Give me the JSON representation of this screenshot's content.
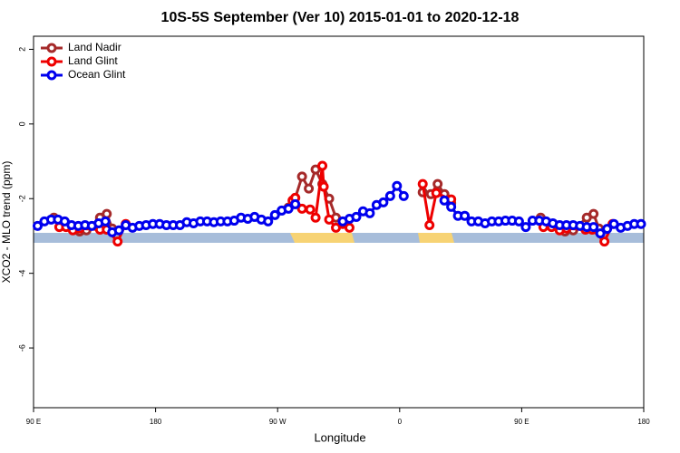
{
  "chart_data": {
    "type": "line",
    "title": "10S-5S September (Ver 10)   2015-01-01 to 2020-12-18",
    "xlabel": "Longitude",
    "ylabel": "XCO2 - MLO trend (ppm)",
    "xlim": [
      90,
      540
    ],
    "xticks": [
      {
        "value": 90,
        "label": "90 E"
      },
      180,
      {
        "value": 270,
        "label": "90 W"
      },
      {
        "value": 360,
        "label": "0"
      },
      {
        "value": 450,
        "label": "90 E"
      },
      {
        "value": 540,
        "label": "180"
      }
    ],
    "ylim": [
      -7.6,
      2.35
    ],
    "yticks": [
      2,
      0,
      -2,
      -4,
      -6
    ],
    "legend": "top-left",
    "series": [
      {
        "name": "Land Nadir",
        "color": "#a52a2a",
        "x": [
          105,
          110,
          124,
          129,
          139,
          144,
          148,
          null,
          278,
          283,
          288,
          293,
          298,
          303,
          308,
          313,
          318,
          null,
          377,
          383,
          388,
          393,
          398,
          null,
          464,
          470,
          482,
          488,
          498,
          503,
          507
        ],
        "values": [
          -2.51,
          -2.66,
          -2.88,
          -2.85,
          -2.51,
          -2.41,
          -2.8,
          null,
          -2.24,
          -1.98,
          -1.41,
          -1.73,
          -1.22,
          -1.61,
          -2.0,
          -2.51,
          -2.66,
          null,
          -1.83,
          -1.88,
          -1.61,
          -1.88,
          -2.12,
          null,
          -2.51,
          -2.68,
          -2.88,
          -2.85,
          -2.51,
          -2.41,
          -2.8
        ]
      },
      {
        "name": "Land Glint",
        "color": "#ee0000",
        "x": [
          109,
          114,
          119,
          124,
          139,
          144,
          152,
          158,
          null,
          281,
          283,
          288,
          294,
          298,
          303,
          304,
          308,
          313,
          318,
          323,
          null,
          377,
          382,
          387,
          398,
          null,
          466,
          472,
          478,
          483,
          497,
          502,
          511,
          517
        ],
        "values": [
          -2.76,
          -2.76,
          -2.85,
          -2.8,
          -2.83,
          -2.83,
          -3.15,
          -2.68,
          null,
          -2.05,
          -1.98,
          -2.27,
          -2.29,
          -2.51,
          -1.12,
          -1.68,
          -2.56,
          -2.78,
          -2.68,
          -2.78,
          null,
          -1.61,
          -2.71,
          -1.85,
          -2.02,
          null,
          -2.76,
          -2.76,
          -2.85,
          -2.8,
          -2.83,
          -2.83,
          -3.15,
          -2.68
        ]
      },
      {
        "name": "Ocean Glint",
        "color": "#0000ee",
        "x": [
          93,
          98,
          103,
          108,
          113,
          118,
          123,
          128,
          133,
          138,
          143,
          148,
          153,
          158,
          163,
          168,
          173,
          178,
          183,
          188,
          193,
          198,
          203,
          208,
          213,
          218,
          223,
          228,
          233,
          238,
          243,
          248,
          253,
          258,
          263,
          268,
          273,
          278,
          283,
          null,
          318,
          323,
          328,
          333,
          338,
          343,
          348,
          353,
          358,
          363,
          null,
          393,
          398,
          403,
          408,
          413,
          418,
          423,
          428,
          433,
          438,
          443,
          448,
          453,
          458,
          463,
          468,
          473,
          478,
          483,
          488,
          493,
          498,
          503,
          508,
          513,
          518,
          523,
          528,
          533,
          538
        ],
        "values": [
          -2.73,
          -2.61,
          -2.56,
          -2.56,
          -2.61,
          -2.71,
          -2.73,
          -2.71,
          -2.73,
          -2.66,
          -2.61,
          -2.9,
          -2.85,
          -2.71,
          -2.78,
          -2.73,
          -2.71,
          -2.68,
          -2.68,
          -2.71,
          -2.71,
          -2.71,
          -2.63,
          -2.66,
          -2.61,
          -2.61,
          -2.63,
          -2.61,
          -2.61,
          -2.59,
          -2.51,
          -2.54,
          -2.49,
          -2.56,
          -2.61,
          -2.44,
          -2.32,
          -2.27,
          -2.15,
          null,
          -2.61,
          -2.54,
          -2.49,
          -2.34,
          -2.39,
          -2.17,
          -2.1,
          -1.93,
          -1.66,
          -1.93,
          null,
          -2.05,
          -2.22,
          -2.46,
          -2.46,
          -2.61,
          -2.61,
          -2.66,
          -2.61,
          -2.61,
          -2.59,
          -2.59,
          -2.61,
          -2.76,
          -2.59,
          -2.59,
          -2.61,
          -2.66,
          -2.71,
          -2.71,
          -2.71,
          -2.73,
          -2.76,
          -2.76,
          -2.93,
          -2.81,
          -2.68,
          -2.78,
          -2.73,
          -2.68,
          -2.68
        ]
      }
    ]
  }
}
